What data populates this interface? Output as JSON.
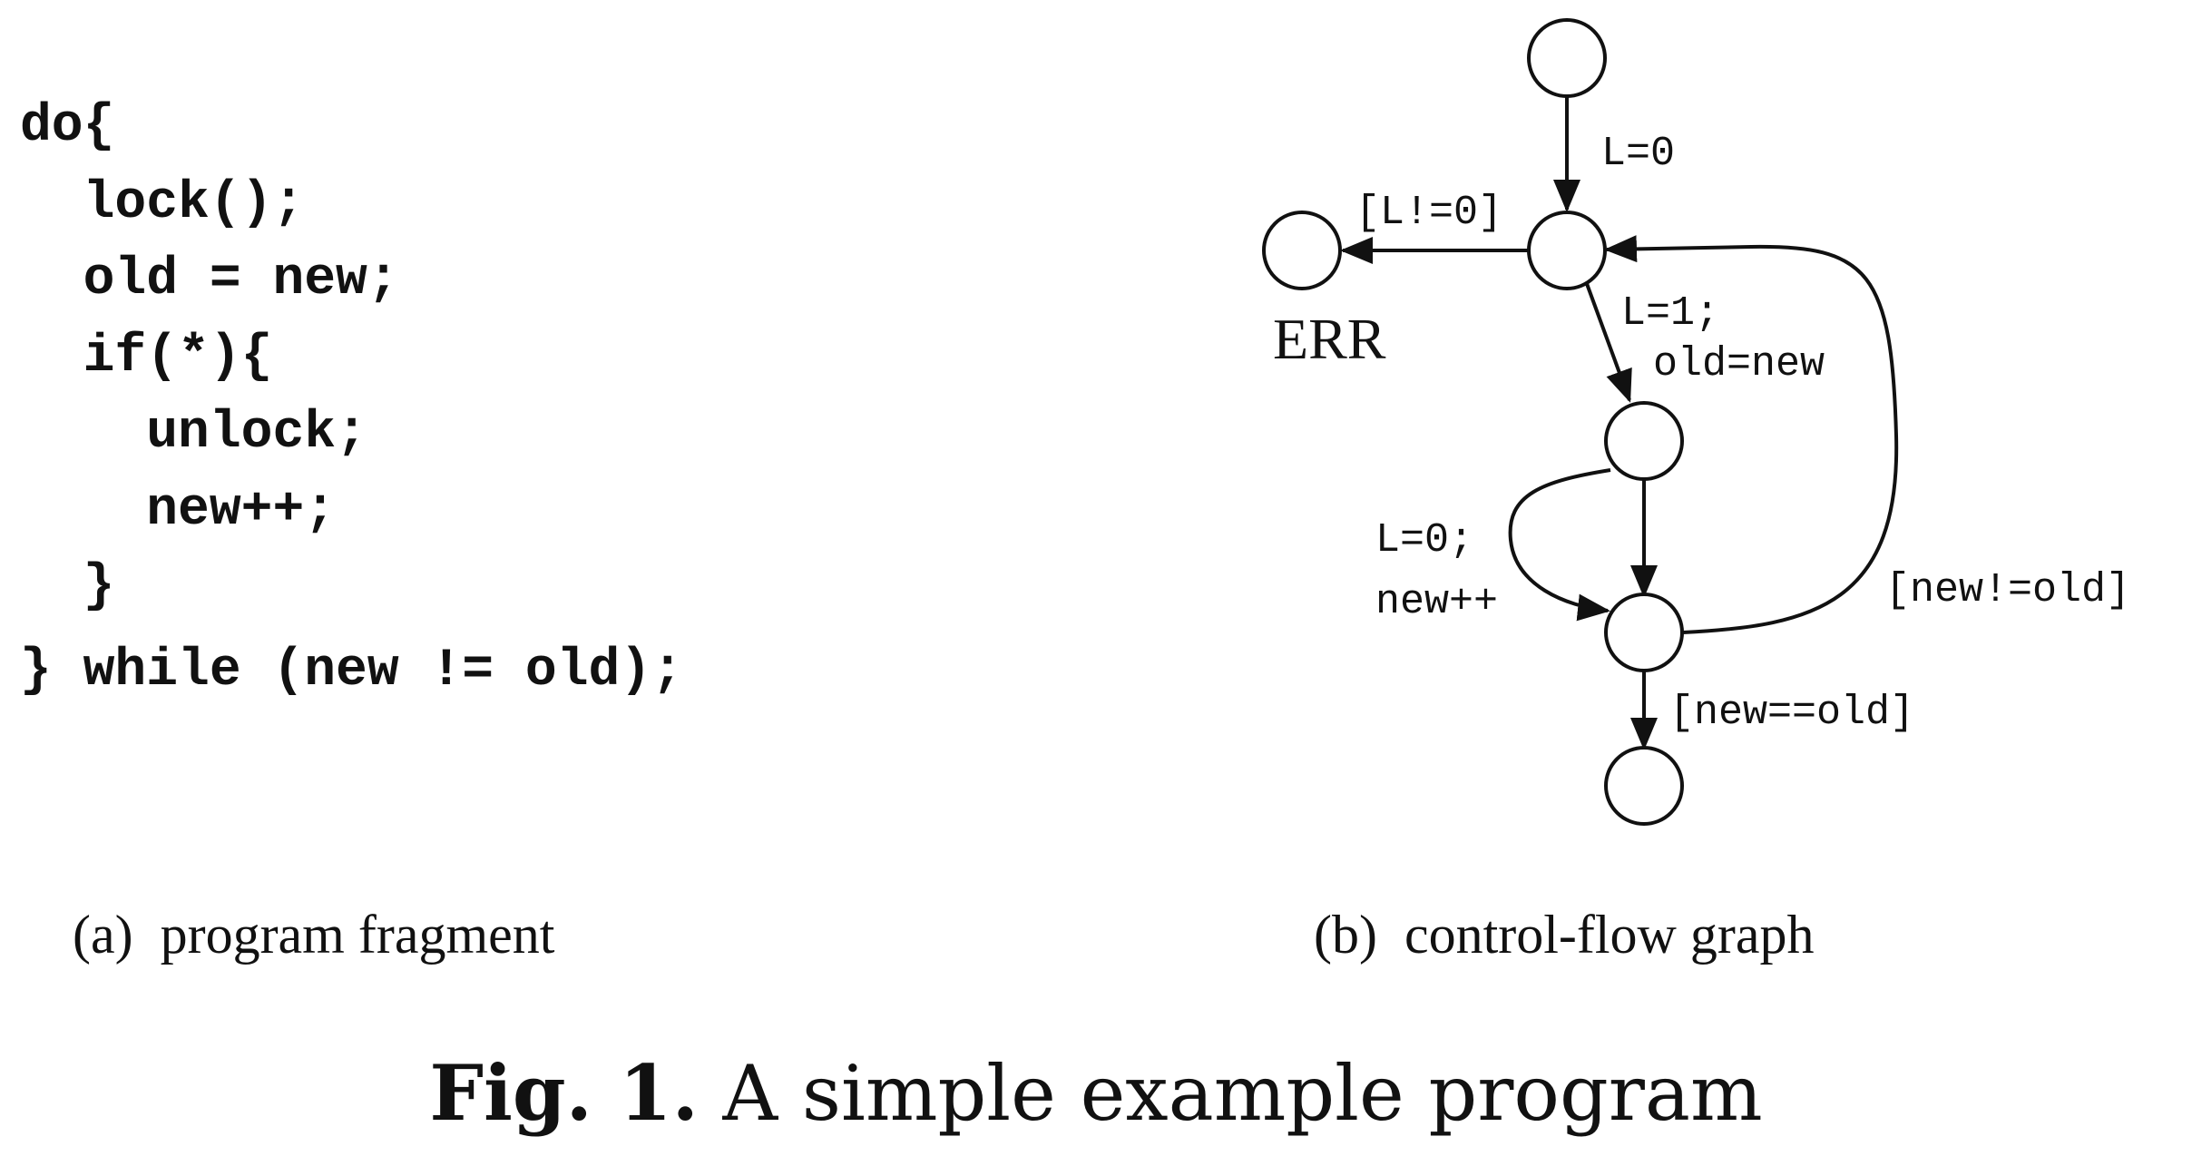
{
  "code": {
    "lines": [
      "do{",
      "  lock();",
      "  old = new;",
      "  if(*){",
      "    unlock;",
      "    new++;",
      "  }",
      "} while (new != old);"
    ]
  },
  "captions": {
    "a": "(a)  program fragment",
    "b": "(b)  control-flow graph"
  },
  "figure": {
    "label": "Fig. 1.",
    "title": "A simple example program"
  },
  "graph": {
    "nodes": {
      "err_label": "ERR"
    },
    "edges": {
      "init": "L=0",
      "error": "[L!=0]",
      "lock_line1": "L=1;",
      "lock_line2": "old=new",
      "unlock_line1": "L=0;",
      "unlock_line2": "new++",
      "loop_back": "[new!=old]",
      "exit": "[new==old]"
    }
  }
}
